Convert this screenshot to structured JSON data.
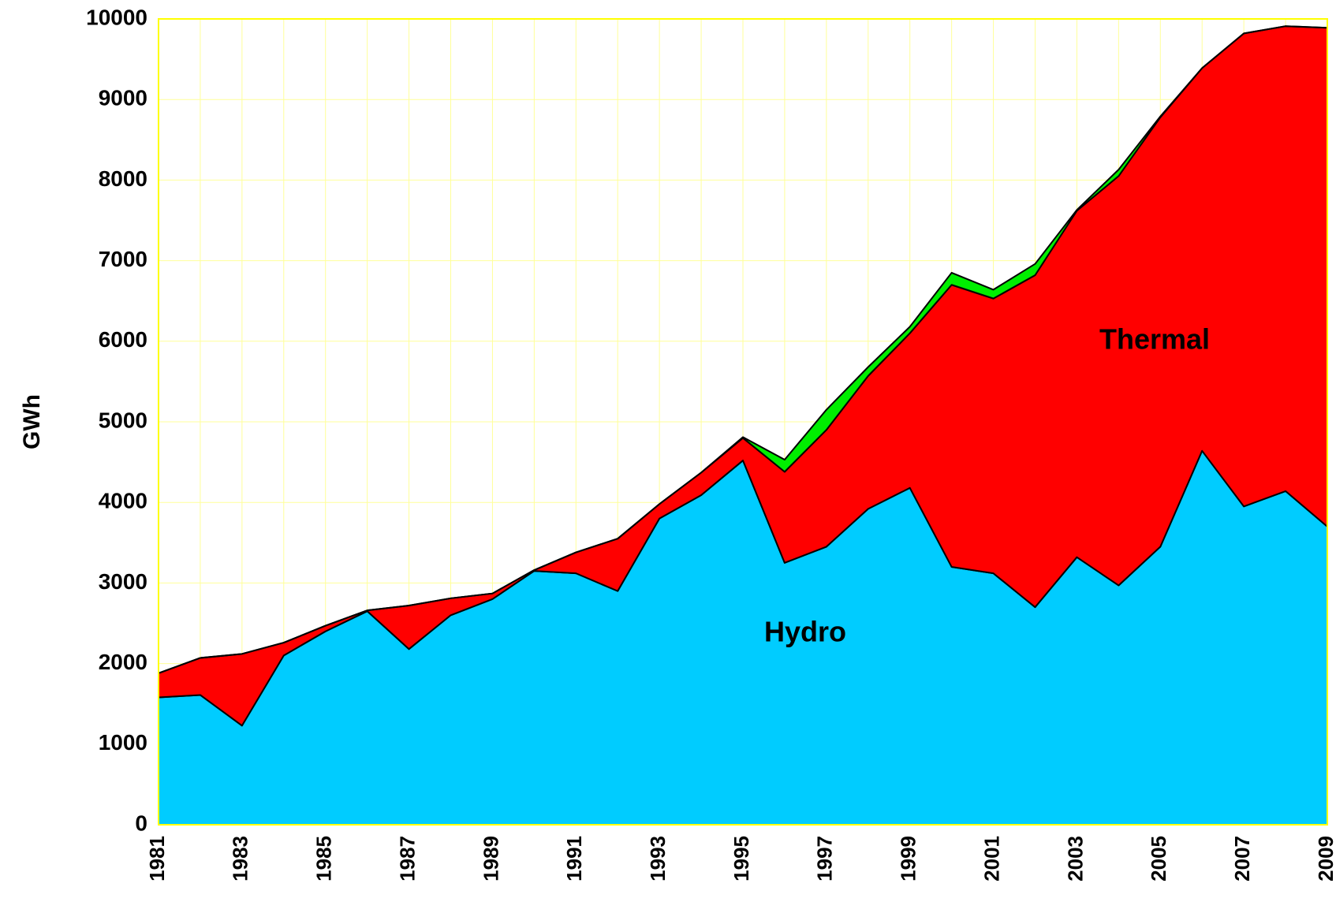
{
  "chart_data": {
    "type": "stacked_area",
    "y_label": "GWh",
    "categories": [
      "1981",
      null,
      "1983",
      null,
      "1985",
      null,
      "1987",
      null,
      "1989",
      null,
      "1991",
      null,
      "1993",
      null,
      "1995",
      null,
      "1997",
      null,
      "1999",
      null,
      "2001",
      null,
      "2003",
      null,
      "2005",
      null,
      "2007",
      null,
      "2009"
    ],
    "series": [
      {
        "name": "Hydro",
        "color": "#00ccff",
        "values": [
          1580,
          1610,
          1230,
          2100,
          2400,
          2650,
          2180,
          2600,
          2800,
          3150,
          3120,
          2900,
          3800,
          4090,
          4520,
          3250,
          3450,
          3920,
          4180,
          3200,
          3120,
          2700,
          3320,
          2970,
          3450,
          4640,
          3950,
          4140,
          3700
        ]
      },
      {
        "name": "Thermal",
        "color": "#ff0000",
        "values": [
          300,
          460,
          890,
          160,
          70,
          10,
          540,
          210,
          70,
          10,
          260,
          650,
          180,
          280,
          280,
          1130,
          1450,
          1650,
          1920,
          3500,
          3410,
          4120,
          4300,
          5080,
          5330,
          4750,
          5870,
          5770,
          6190
        ]
      },
      {
        "color": "#00ee00",
        "values": [
          0,
          0,
          0,
          0,
          0,
          0,
          0,
          0,
          0,
          0,
          0,
          0,
          0,
          0,
          10,
          150,
          250,
          110,
          80,
          150,
          110,
          140,
          10,
          80,
          10,
          0,
          0,
          0,
          0
        ]
      }
    ],
    "ylim": [
      0,
      10000
    ],
    "yticks": [
      0,
      1000,
      2000,
      3000,
      4000,
      5000,
      6000,
      7000,
      8000,
      9000,
      10000
    ],
    "grid": true,
    "grid_color": "#ffff99",
    "frame_color": "#ffff00"
  }
}
